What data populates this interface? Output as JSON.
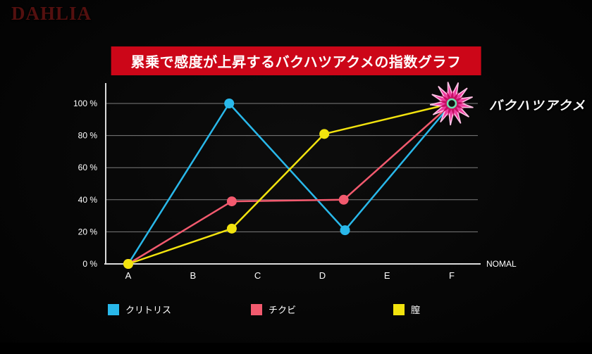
{
  "logo": {
    "text": "DAHLIA"
  },
  "header": {
    "title": "累乗で感度が上昇するバクハツアクメの指数グラフ",
    "banner_color": "#cc0618"
  },
  "chart_data": {
    "type": "line",
    "title": "累乗で感度が上昇するバクハツアクメの指数グラフ",
    "x_categories": [
      "A",
      "B",
      "C",
      "D",
      "E",
      "F"
    ],
    "x_axis_end_label": "NOMAL",
    "ylim": [
      0,
      100
    ],
    "grid": true,
    "y_ticks": [
      {
        "value": 0,
        "label": "0 %"
      },
      {
        "value": 20,
        "label": "20 %"
      },
      {
        "value": 40,
        "label": "40 %"
      },
      {
        "value": 60,
        "label": "60 %"
      },
      {
        "value": 80,
        "label": "80 %"
      },
      {
        "value": 100,
        "label": "100 %"
      }
    ],
    "series": [
      {
        "name": "クリトリス",
        "color": "#29b8ea",
        "points": [
          [
            0,
            0
          ],
          [
            1.56,
            100
          ],
          [
            3.35,
            21
          ],
          [
            5,
            100
          ]
        ]
      },
      {
        "name": "チクビ",
        "color": "#f25a6e",
        "points": [
          [
            0,
            0
          ],
          [
            1.6,
            39
          ],
          [
            3.33,
            40
          ],
          [
            5,
            100
          ]
        ]
      },
      {
        "name": "膣",
        "color": "#f2e30e",
        "points": [
          [
            0,
            0
          ],
          [
            1.6,
            22
          ],
          [
            3.03,
            81
          ],
          [
            5,
            100
          ]
        ]
      }
    ],
    "annotation": {
      "label": "バクハツアクメ",
      "x": 5,
      "y": 100
    },
    "burst_color": "#ee3d9f",
    "legend_position": "bottom"
  },
  "legend": {
    "items": [
      {
        "label": "クリトリス",
        "color": "#29b8ea"
      },
      {
        "label": "チクビ",
        "color": "#f25a6e"
      },
      {
        "label": "膣",
        "color": "#f2e30e"
      }
    ]
  }
}
